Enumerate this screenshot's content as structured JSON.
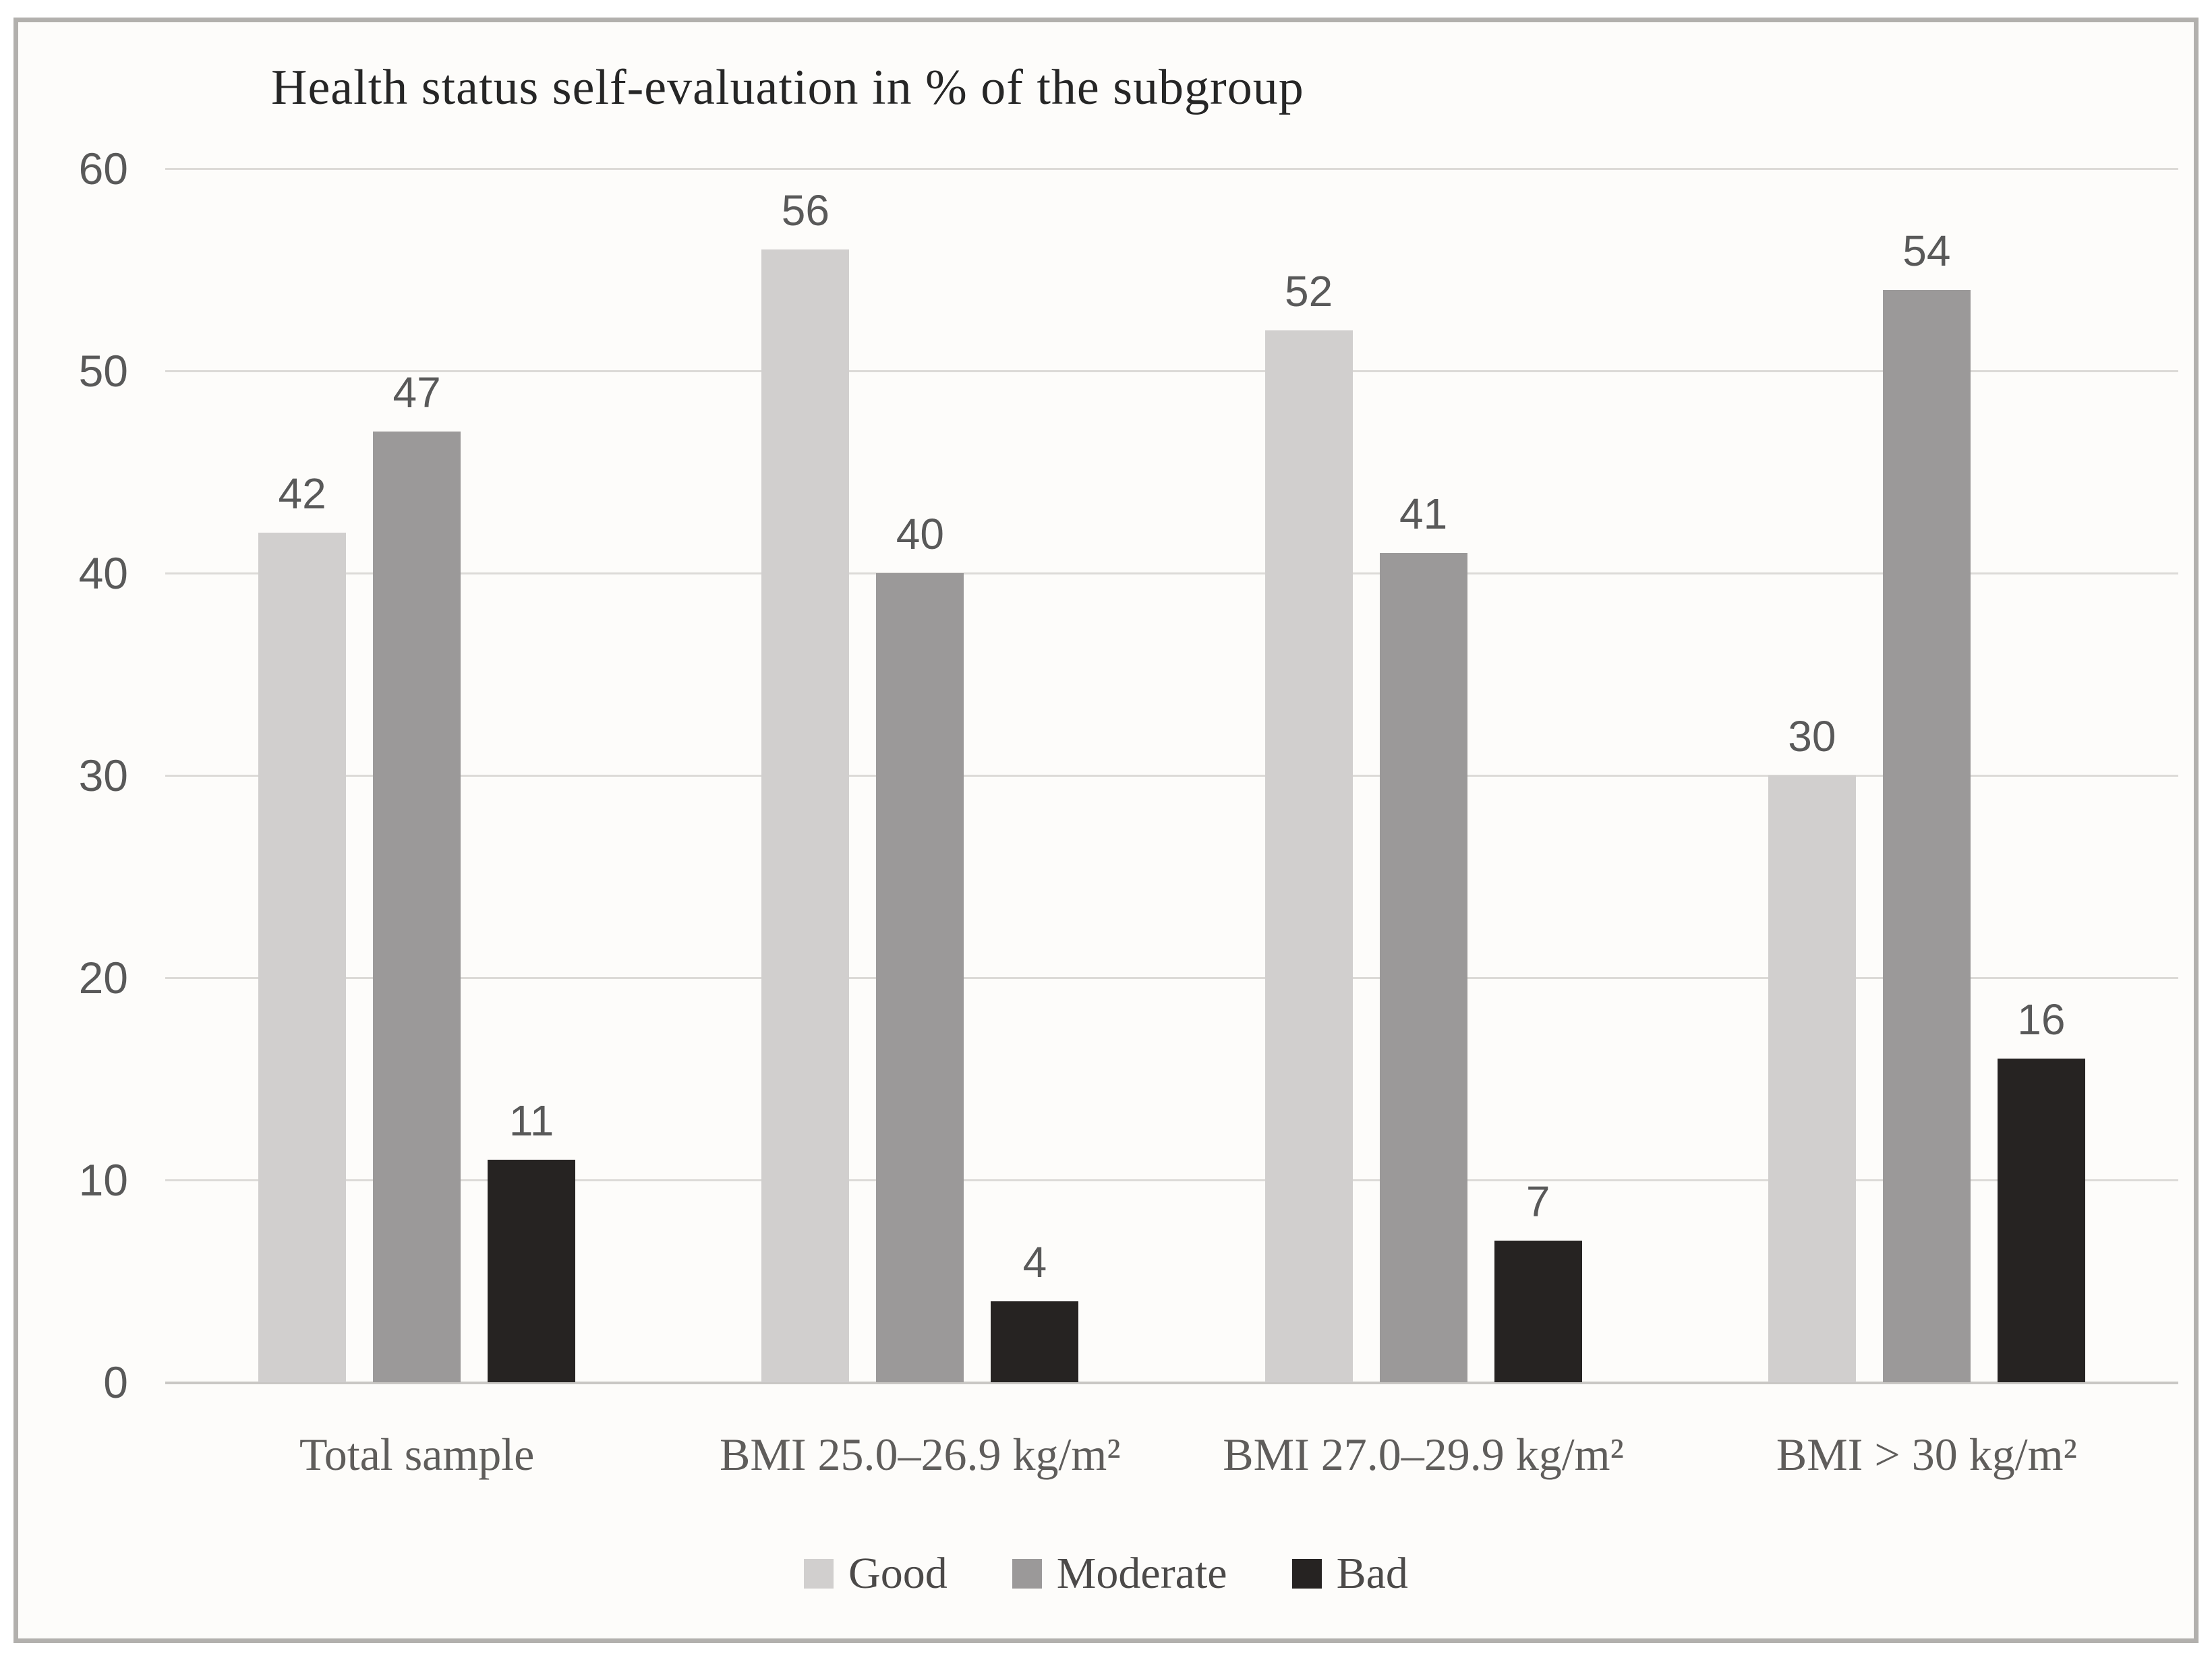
{
  "chart_data": {
    "type": "bar",
    "title": "Health status self-evaluation in % of the subgroup",
    "categories": [
      "Total sample",
      "BMI 25.0–26.9 kg/m²",
      "BMI 27.0–29.9 kg/m²",
      "BMI > 30 kg/m²"
    ],
    "series": [
      {
        "name": "Good",
        "color": "#d1cfce",
        "values": [
          42,
          56,
          52,
          30
        ]
      },
      {
        "name": "Moderate",
        "color": "#9b9999",
        "values": [
          47,
          40,
          41,
          54
        ]
      },
      {
        "name": "Bad",
        "color": "#262322",
        "values": [
          11,
          4,
          7,
          16
        ]
      }
    ],
    "ylim": [
      0,
      60
    ],
    "yticks": [
      0,
      10,
      20,
      30,
      40,
      50,
      60
    ],
    "grid": true,
    "legend_position": "bottom",
    "legend_labels": [
      "Good",
      "Moderate",
      "Bad"
    ]
  },
  "colors": {
    "frame_border": "#b2b0ad",
    "background": "#fdfcfa",
    "gridline": "#dcdad7",
    "axis_line": "#c9c7c4",
    "tick_text": "#595959",
    "data_label_text": "#595959",
    "category_text": "#5f5d5b",
    "legend_text": "#4c4a49",
    "title_text": "#262626"
  }
}
